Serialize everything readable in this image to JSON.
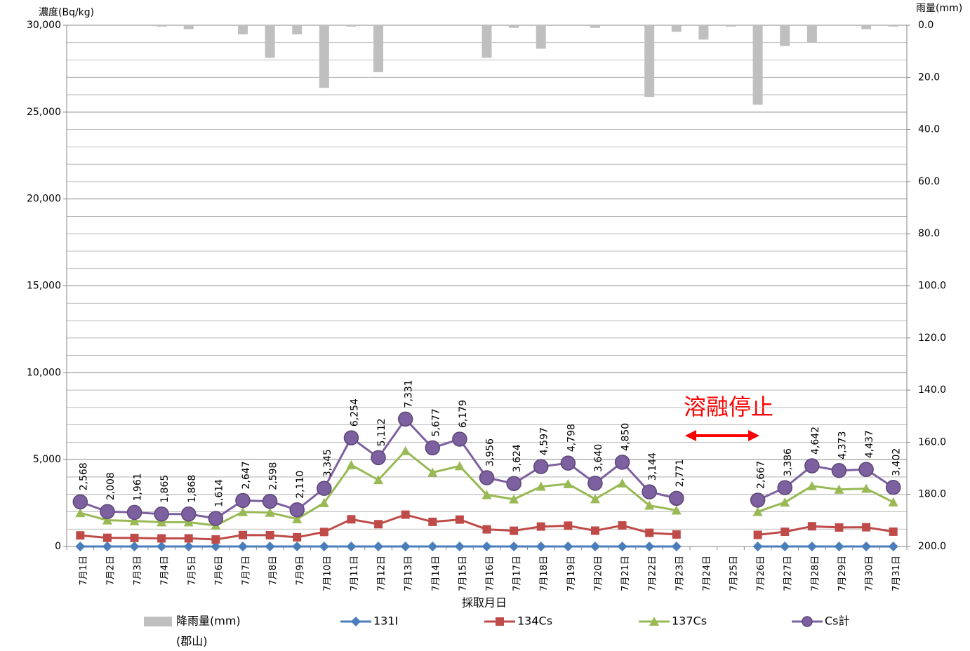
{
  "chart_data": {
    "type": "line",
    "ylabel": "濃度(Bq/kg)",
    "y2label": "雨量(mm)",
    "xlabel": "採取月日",
    "annotation": "溶融停止",
    "categories": [
      "7月1日",
      "7月2日",
      "7月3日",
      "7月4日",
      "7月5日",
      "7月6日",
      "7月7日",
      "7月8日",
      "7月9日",
      "7月10日",
      "7月11日",
      "7月12日",
      "7月13日",
      "7月14日",
      "7月15日",
      "7月16日",
      "7月17日",
      "7月18日",
      "7月19日",
      "7月20日",
      "7月21日",
      "7月22日",
      "7月23日",
      "7月24日",
      "7月25日",
      "7月26日",
      "7月27日",
      "7月28日",
      "7月29日",
      "7月30日",
      "7月31日"
    ],
    "ylim": [
      0,
      30000
    ],
    "yticks": [
      0,
      {
        "value": 5000,
        "label": "5,000"
      },
      {
        "value": 10000,
        "label": "10,000"
      },
      {
        "value": 15000,
        "label": "15,000"
      },
      {
        "value": 20000,
        "label": "20,000"
      },
      {
        "value": 25000,
        "label": "25,000"
      },
      {
        "value": 30000,
        "label": "30,000"
      }
    ],
    "yminorticks": [
      1000,
      2000,
      3000,
      4000,
      6000,
      7000,
      8000,
      9000,
      11000,
      12000,
      13000,
      14000,
      16000,
      17000,
      18000,
      19000,
      21000,
      22000,
      23000,
      24000,
      26000,
      27000,
      28000,
      29000
    ],
    "y2lim": [
      0,
      200
    ],
    "y2_inverted": true,
    "y2ticks": [
      {
        "value": 0,
        "label": "0.0"
      },
      {
        "value": 20,
        "label": "20.0"
      },
      {
        "value": 40,
        "label": "40.0"
      },
      {
        "value": 60,
        "label": "60.0"
      },
      {
        "value": 80,
        "label": "80.0"
      },
      {
        "value": 100,
        "label": "100.0"
      },
      {
        "value": 120,
        "label": "120.0"
      },
      {
        "value": 140,
        "label": "140.0"
      },
      {
        "value": 160,
        "label": "160.0"
      },
      {
        "value": 180,
        "label": "180.0"
      },
      {
        "value": 200,
        "label": "200.0"
      }
    ],
    "grid": true,
    "series": [
      {
        "name": "降雨量(mm)",
        "note": "(郡山)",
        "kind": "bar",
        "axis": "y2",
        "color": "#bfbfbf",
        "values": [
          0,
          0,
          0,
          0.5,
          1.5,
          0,
          3.5,
          12.5,
          3.5,
          24,
          0.5,
          18,
          0,
          0,
          0,
          12.5,
          1,
          9,
          0,
          1,
          0,
          27.5,
          2.5,
          5.5,
          0.5,
          30.5,
          8,
          6.5,
          0,
          1.5,
          0.5
        ]
      },
      {
        "name": "131I",
        "kind": "line",
        "marker": "diamond",
        "color": "#4a7ebb",
        "values": [
          0,
          0,
          0,
          0,
          0,
          0,
          0,
          0,
          0,
          0,
          0,
          0,
          0,
          0,
          0,
          0,
          0,
          0,
          0,
          0,
          0,
          0,
          0,
          null,
          null,
          0,
          0,
          0,
          0,
          0,
          0
        ]
      },
      {
        "name": "134Cs",
        "kind": "line",
        "marker": "square",
        "color": "#be4b48",
        "values": [
          638,
          498,
          491,
          465,
          468,
          404,
          657,
          648,
          530,
          835,
          1564,
          1282,
          1831,
          1417,
          1549,
          986,
          904,
          1147,
          1198,
          910,
          1210,
          784,
          691,
          null,
          null,
          667,
          846,
          1162,
          1093,
          1107,
          852
        ]
      },
      {
        "name": "137Cs",
        "kind": "line",
        "marker": "triangle",
        "color": "#98b954",
        "values": [
          1930,
          1510,
          1470,
          1400,
          1400,
          1210,
          1990,
          1950,
          1580,
          2510,
          4690,
          3830,
          5500,
          4260,
          4630,
          2970,
          2720,
          3450,
          3600,
          2730,
          3640,
          2360,
          2080,
          null,
          null,
          2000,
          2540,
          3480,
          3280,
          3330,
          2550
        ]
      },
      {
        "name": "Cs計",
        "kind": "line",
        "marker": "circle",
        "color": "#7d60a0",
        "values": [
          2568,
          2008,
          1961,
          1865,
          1868,
          1614,
          2647,
          2598,
          2110,
          3345,
          6254,
          5112,
          7331,
          5677,
          6179,
          3956,
          3624,
          4597,
          4798,
          3640,
          4850,
          3144,
          2771,
          null,
          null,
          2667,
          3386,
          4642,
          4373,
          4437,
          3402
        ],
        "value_labels": [
          "2,568",
          "2,008",
          "1,961",
          "1,865",
          "1,868",
          "1,614",
          "2,647",
          "2,598",
          "2,110",
          "3,345",
          "6,254",
          "5,112",
          "7,331",
          "5,677",
          "6,179",
          "3,956",
          "3,624",
          "4,597",
          "4,798",
          "3,640",
          "4,850",
          "3,144",
          "2,771",
          null,
          null,
          "2,667",
          "3,386",
          "4,642",
          "4,373",
          "4,437",
          "3,402"
        ]
      }
    ]
  }
}
